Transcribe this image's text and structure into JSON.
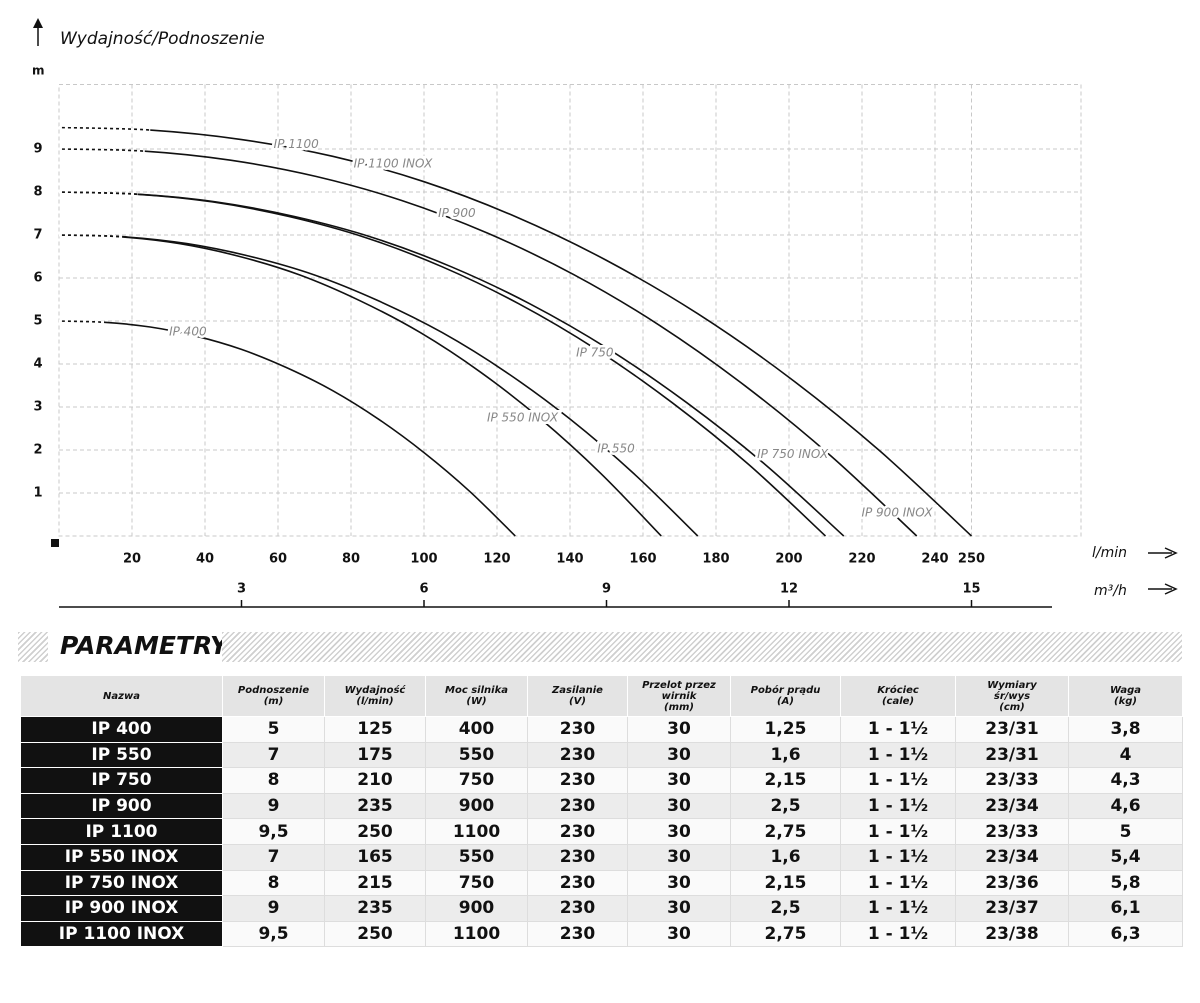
{
  "chart_data": {
    "type": "line",
    "title": "Wydajność/Podnoszenie",
    "ylabel": "m",
    "xlabel": "l/min",
    "x2label": "m³/h",
    "xlim": [
      0,
      280
    ],
    "xticks": [
      20,
      40,
      60,
      80,
      100,
      120,
      140,
      160,
      180,
      200,
      220,
      240,
      250
    ],
    "x2lim": [
      0,
      16.8
    ],
    "x2ticks": [
      3,
      6,
      9,
      12,
      15
    ],
    "ylim": [
      0,
      10.5
    ],
    "yticks": [
      1,
      2,
      3,
      4,
      5,
      6,
      7,
      8,
      9
    ],
    "grid": true,
    "series": [
      {
        "color": "#111111",
        "x": [
          0,
          12.5,
          25,
          37.5,
          50,
          62.5,
          75,
          87.5,
          100,
          112.5,
          125
        ],
        "values": [
          5,
          4.97,
          4.86,
          4.65,
          4.34,
          3.91,
          3.38,
          2.72,
          1.94,
          1.04,
          0
        ]
      },
      {
        "color": "#111111",
        "x": [
          0,
          16.5,
          33,
          49.5,
          66,
          82.5,
          99,
          115.5,
          132,
          148.5,
          165
        ],
        "values": [
          7,
          6.96,
          6.8,
          6.5,
          6.07,
          5.47,
          4.73,
          3.81,
          2.72,
          1.45,
          0
        ]
      },
      {
        "color": "#111111",
        "x": [
          0,
          17.5,
          35,
          52.5,
          70,
          87.5,
          105,
          122.5,
          140,
          157.5,
          175
        ],
        "values": [
          7,
          6.96,
          6.8,
          6.5,
          6.07,
          5.47,
          4.73,
          3.81,
          2.72,
          1.45,
          0
        ]
      },
      {
        "color": "#111111",
        "x": [
          0,
          21,
          42,
          63,
          84,
          105,
          126,
          147,
          168,
          189,
          210
        ],
        "values": [
          8,
          7.95,
          7.77,
          7.43,
          6.94,
          6.26,
          5.4,
          4.35,
          3.1,
          1.66,
          0
        ]
      },
      {
        "color": "#111111",
        "x": [
          0,
          21.5,
          43,
          64.5,
          86,
          107.5,
          129,
          150.5,
          172,
          193.5,
          215
        ],
        "values": [
          8,
          7.95,
          7.77,
          7.43,
          6.94,
          6.26,
          5.4,
          4.35,
          3.1,
          1.66,
          0
        ]
      },
      {
        "color": "#111111",
        "x": [
          0,
          23.5,
          47,
          70.5,
          94,
          117.5,
          141,
          164.5,
          188,
          211.5,
          235
        ],
        "values": [
          9,
          8.95,
          8.74,
          8.36,
          7.8,
          7.04,
          6.08,
          4.9,
          3.49,
          1.86,
          0
        ]
      },
      {
        "color": "#111111",
        "x": [
          0,
          25,
          50,
          75,
          100,
          125,
          150,
          175,
          200,
          225,
          250
        ],
        "values": [
          9.5,
          9.44,
          9.22,
          8.83,
          8.24,
          7.43,
          6.41,
          5.17,
          3.69,
          1.97,
          0
        ]
      }
    ],
    "annotations": [
      {
        "text": "IP 1100",
        "x": 65,
        "y": 9.1
      },
      {
        "text": "IP 1100 INOX",
        "x": 91.5,
        "y": 8.65
      },
      {
        "text": "IP 900",
        "x": 109,
        "y": 7.5
      },
      {
        "text": "IP 400",
        "x": 35.3,
        "y": 4.74
      },
      {
        "text": "IP 750",
        "x": 146.8,
        "y": 4.26
      },
      {
        "text": "IP 550 INOX",
        "x": 127,
        "y": 2.74
      },
      {
        "text": "IP 550",
        "x": 152.6,
        "y": 2.02
      },
      {
        "text": "IP 750 INOX",
        "x": 201,
        "y": 1.9
      },
      {
        "text": "IP 900 INOX",
        "x": 229.6,
        "y": 0.53
      }
    ]
  },
  "section_title": "PARAMETRY",
  "table": {
    "header": [
      "Nazwa",
      "Podnoszenie\n(m)",
      "Wydajność\n(l/min)",
      "Moc silnika\n(W)",
      "Zasilanie\n(V)",
      "Przelot przez\nwirnik\n(mm)",
      "Pobór prądu\n(A)",
      "Króciec\n(cale)",
      "Wymiary\nśr/wys\n(cm)",
      "Waga\n(kg)"
    ],
    "rows": [
      [
        "IP 400",
        "5",
        "125",
        "400",
        "230",
        "30",
        "1,25",
        "1 - 1½",
        "23/31",
        "3,8"
      ],
      [
        "IP 550",
        "7",
        "175",
        "550",
        "230",
        "30",
        "1,6",
        "1 - 1½",
        "23/31",
        "4"
      ],
      [
        "IP 750",
        "8",
        "210",
        "750",
        "230",
        "30",
        "2,15",
        "1 - 1½",
        "23/33",
        "4,3"
      ],
      [
        "IP 900",
        "9",
        "235",
        "900",
        "230",
        "30",
        "2,5",
        "1 - 1½",
        "23/34",
        "4,6"
      ],
      [
        "IP 1100",
        "9,5",
        "250",
        "1100",
        "230",
        "30",
        "2,75",
        "1 - 1½",
        "23/33",
        "5"
      ],
      [
        "IP 550 INOX",
        "7",
        "165",
        "550",
        "230",
        "30",
        "1,6",
        "1 - 1½",
        "23/34",
        "5,4"
      ],
      [
        "IP 750 INOX",
        "8",
        "215",
        "750",
        "230",
        "30",
        "2,15",
        "1 - 1½",
        "23/36",
        "5,8"
      ],
      [
        "IP 900 INOX",
        "9",
        "235",
        "900",
        "230",
        "30",
        "2,5",
        "1 - 1½",
        "23/37",
        "6,1"
      ],
      [
        "IP 1100 INOX",
        "9,5",
        "250",
        "1100",
        "230",
        "30",
        "2,75",
        "1 - 1½",
        "23/38",
        "6,3"
      ]
    ]
  }
}
